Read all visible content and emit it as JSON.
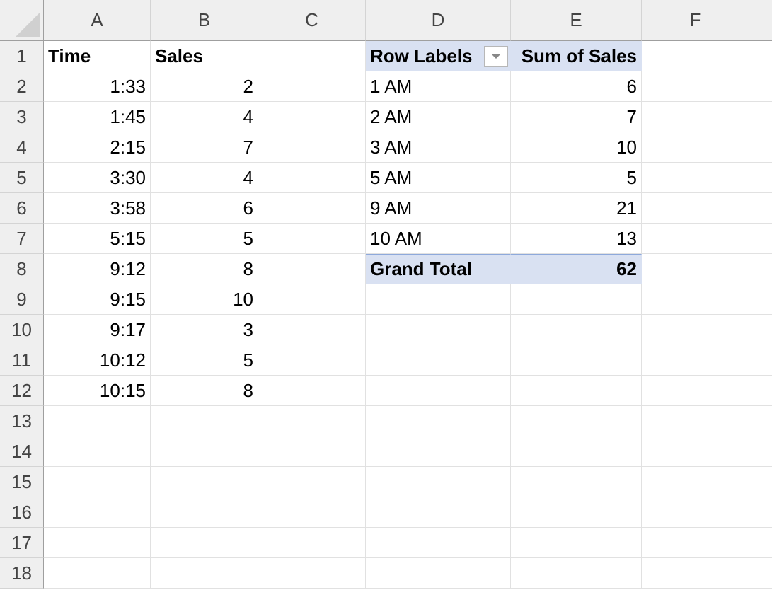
{
  "columns": [
    "A",
    "B",
    "C",
    "D",
    "E",
    "F",
    ""
  ],
  "rows": [
    "1",
    "2",
    "3",
    "4",
    "5",
    "6",
    "7",
    "8",
    "9",
    "10",
    "11",
    "12",
    "13",
    "14",
    "15",
    "16",
    "17",
    "18"
  ],
  "source_table": {
    "headers": [
      "Time",
      "Sales"
    ],
    "rows": [
      [
        "1:33",
        "2"
      ],
      [
        "1:45",
        "4"
      ],
      [
        "2:15",
        "7"
      ],
      [
        "3:30",
        "4"
      ],
      [
        "3:58",
        "6"
      ],
      [
        "5:15",
        "5"
      ],
      [
        "9:12",
        "8"
      ],
      [
        "9:15",
        "10"
      ],
      [
        "9:17",
        "3"
      ],
      [
        "10:12",
        "5"
      ],
      [
        "10:15",
        "8"
      ]
    ]
  },
  "pivot": {
    "headers": [
      "Row Labels",
      "Sum of Sales"
    ],
    "filter_icon": "dropdown-arrow-icon",
    "rows": [
      [
        "1 AM",
        "6"
      ],
      [
        "2 AM",
        "7"
      ],
      [
        "3 AM",
        "10"
      ],
      [
        "5 AM",
        "5"
      ],
      [
        "9 AM",
        "21"
      ],
      [
        "10 AM",
        "13"
      ]
    ],
    "total": [
      "Grand Total",
      "62"
    ],
    "header_color": "#d9e1f2"
  }
}
